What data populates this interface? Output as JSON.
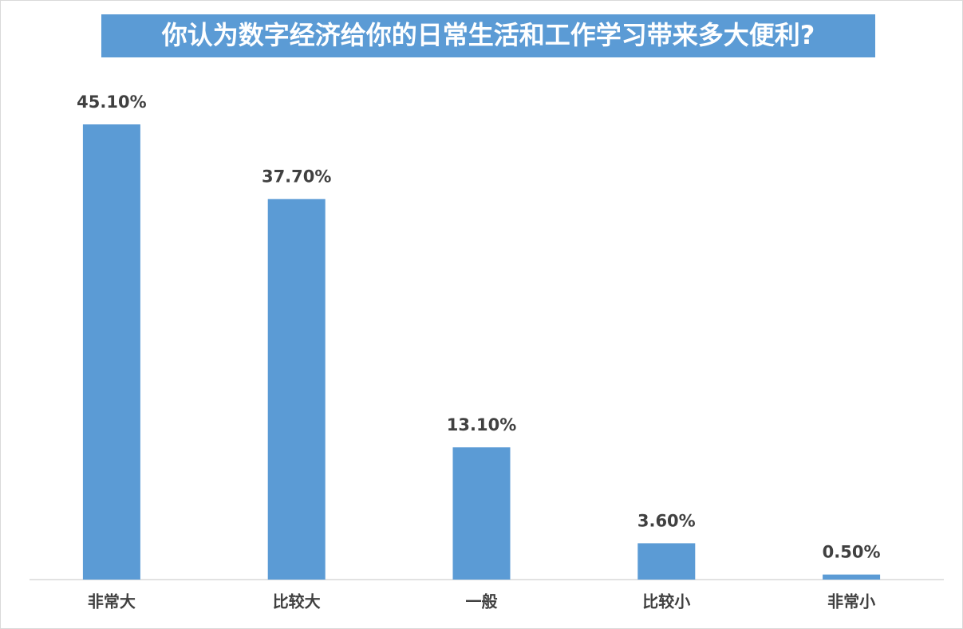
{
  "chart_data": {
    "type": "bar",
    "title": "你认为数字经济给你的日常生活和工作学习带来多大便利?",
    "categories": [
      "非常大",
      "比较大",
      "一般",
      "比较小",
      "非常小"
    ],
    "values": [
      45.1,
      37.7,
      13.1,
      3.6,
      0.5
    ],
    "value_labels": [
      "45.10%",
      "37.70%",
      "13.10%",
      "3.60%",
      "0.50%"
    ],
    "color": "#5b9bd5"
  }
}
